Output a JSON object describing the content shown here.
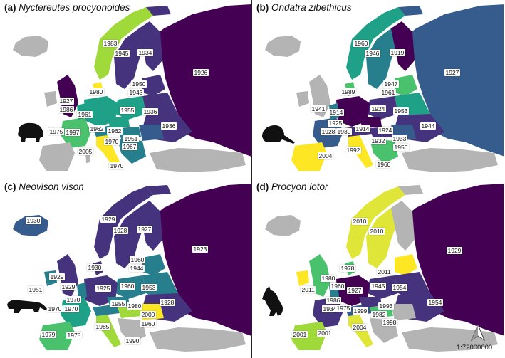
{
  "colors": {
    "purple": "#440154",
    "indigo": "#46337e",
    "blue": "#365c8d",
    "teal_blue": "#277f8e",
    "teal": "#1fa187",
    "green": "#4ac16d",
    "lime": "#9fda3a",
    "yellow": "#fde725",
    "absent": "#b4b4b4"
  },
  "scale_text": "1:72000000",
  "panels": [
    {
      "id": "a",
      "letter": "(a)",
      "species": "Nyctereutes procyonoides",
      "animal_icon": "raccoon-dog-icon",
      "years": [
        "1983",
        "1945",
        "1934",
        "1926",
        "1927",
        "1980",
        "1950",
        "1943",
        "1986",
        "1961",
        "1955",
        "1936",
        "1975",
        "1997",
        "1962",
        "1962",
        "1936",
        "1951",
        "1970",
        "1967",
        "2005",
        "1970"
      ]
    },
    {
      "id": "b",
      "letter": "(b)",
      "species": "Ondatra zibethicus",
      "animal_icon": "muskrat-icon",
      "years": [
        "1960",
        "1946",
        "1919",
        "1927",
        "1947",
        "1989",
        "1961",
        "1941",
        "1914",
        "1924",
        "1953",
        "1925",
        "1944",
        "1928",
        "1930",
        "1914",
        "1924",
        "1933",
        "1932",
        "1956",
        "2004",
        "1992",
        "1960"
      ]
    },
    {
      "id": "c",
      "letter": "(c)",
      "species": "Neovison vison",
      "animal_icon": "mink-icon",
      "years": [
        "1930",
        "1929",
        "1928",
        "1927",
        "1923",
        "1960",
        "1944",
        "1929",
        "1930",
        "1929",
        "1925",
        "1960",
        "1953",
        "1951",
        "1970",
        "1955",
        "1980",
        "1928",
        "1970",
        "1970",
        "2000",
        "1960",
        "1985",
        "1979",
        "1978",
        "1990"
      ]
    },
    {
      "id": "d",
      "letter": "(d)",
      "species": "Procyon lotor",
      "animal_icon": "raccoon-icon",
      "years": [
        "2010",
        "2010",
        "1929",
        "1978",
        "2011",
        "1980",
        "1960",
        "1927",
        "1945",
        "1954",
        "2011",
        "1986",
        "1934",
        "1975",
        "1954",
        "1993",
        "1999",
        "1982",
        "1998",
        "2004",
        "2001",
        "2001"
      ]
    }
  ]
}
